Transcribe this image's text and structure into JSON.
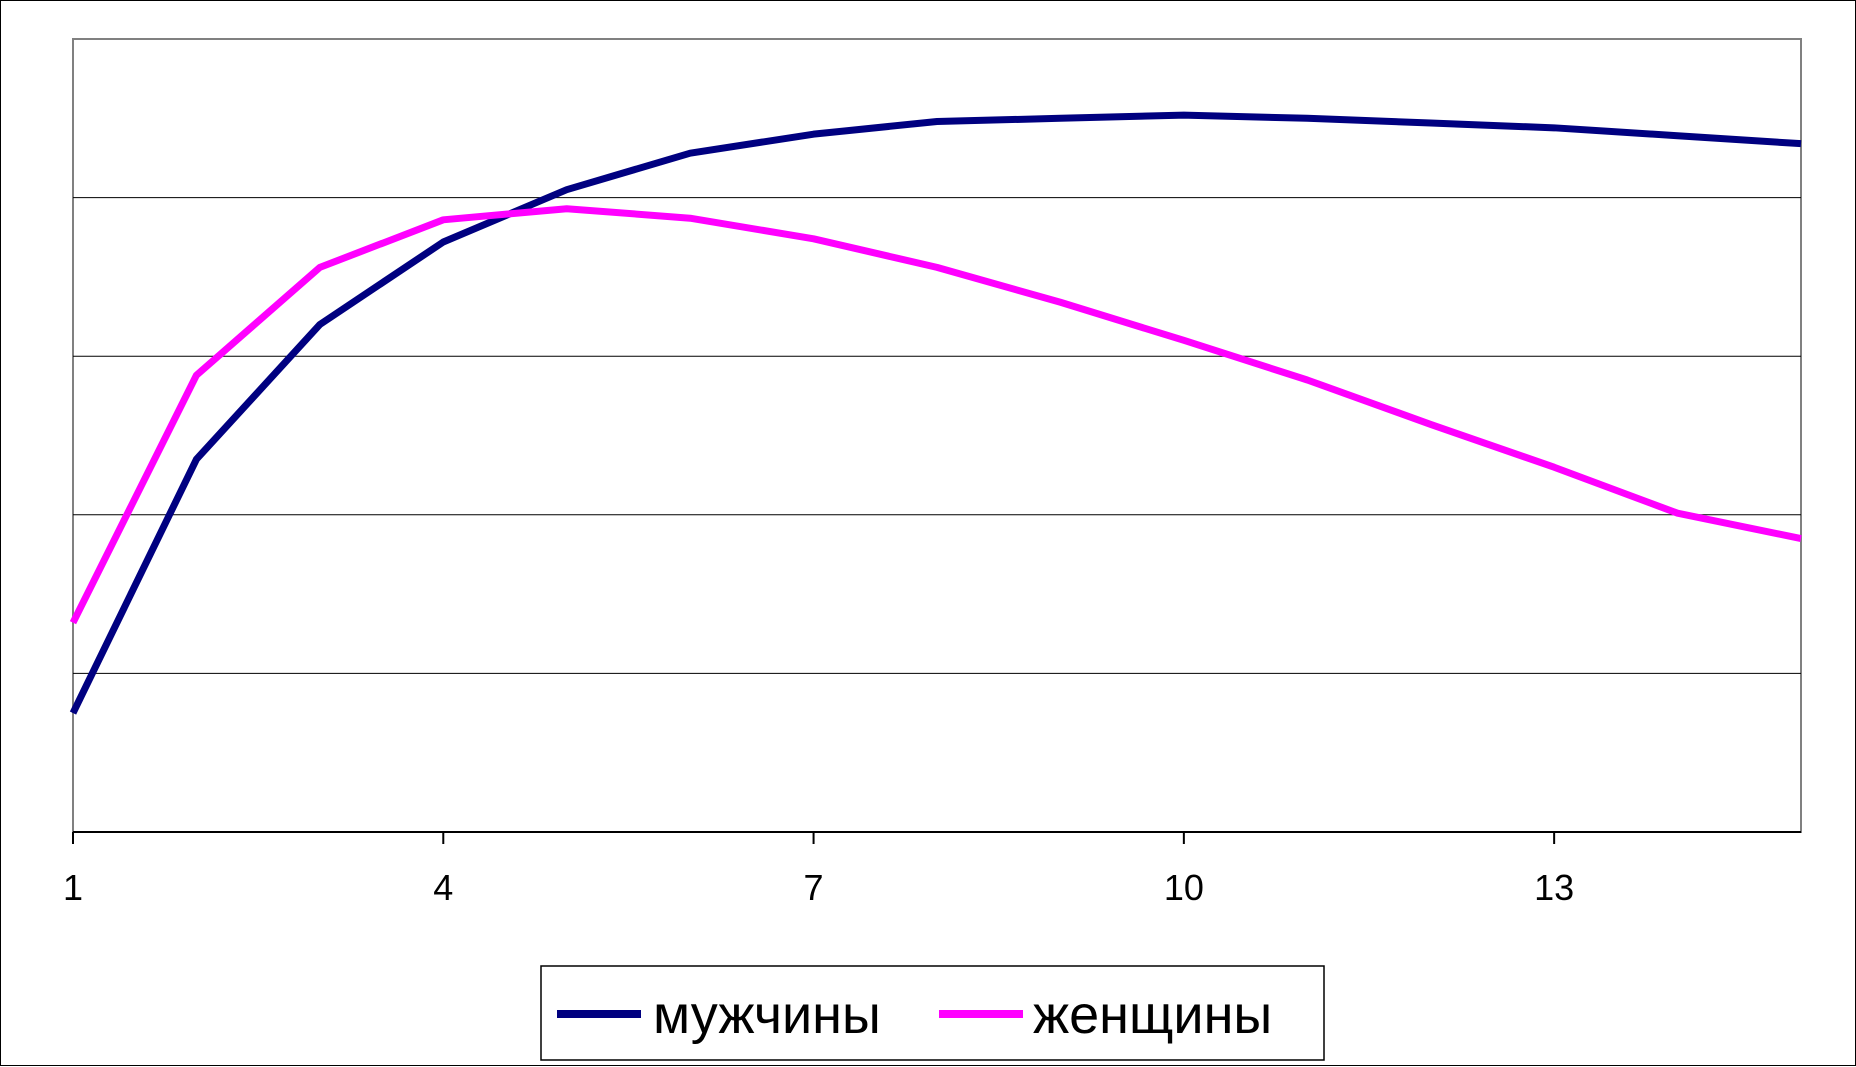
{
  "chart_data": {
    "type": "line",
    "x": [
      1,
      2,
      3,
      4,
      5,
      6,
      7,
      8,
      9,
      10,
      11,
      12,
      13,
      14,
      15
    ],
    "xticks": [
      "1",
      "4",
      "7",
      "10",
      "13"
    ],
    "xtick_values": [
      1,
      4,
      7,
      10,
      13
    ],
    "ylim": [
      0,
      5
    ],
    "yticks": [
      0,
      1,
      2,
      3,
      4,
      5
    ],
    "grid": true,
    "legend": "bottom",
    "series": [
      {
        "name": "мужчины",
        "color": "#000080",
        "values": [
          0.75,
          2.35,
          3.2,
          3.72,
          4.05,
          4.28,
          4.4,
          4.48,
          4.5,
          4.52,
          4.5,
          4.47,
          4.44,
          4.39,
          4.34
        ]
      },
      {
        "name": "женщины",
        "color": "#ff00ff",
        "values": [
          1.32,
          2.88,
          3.56,
          3.86,
          3.93,
          3.87,
          3.74,
          3.56,
          3.34,
          3.1,
          2.85,
          2.57,
          2.3,
          2.01,
          1.85
        ]
      }
    ]
  }
}
